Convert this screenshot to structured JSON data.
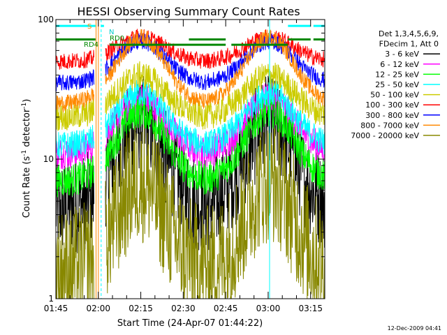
{
  "chart_data": {
    "type": "line",
    "title": "HESSI Observing Summary Count Rates",
    "xlabel": "Start Time (24-Apr-07 01:44:22)",
    "ylabel_main": "Count Rate (s",
    "ylabel_sup": "-1",
    "ylabel_end": " detector",
    "ylabel_sup2": "-1",
    "ylabel_close": ")",
    "ylim": [
      1,
      100
    ],
    "yscale": "log",
    "xlim_minutes": [
      105,
      200
    ],
    "x_ticks": [
      {
        "label": "01:45",
        "minute": 105
      },
      {
        "label": "02:00",
        "minute": 120
      },
      {
        "label": "02:15",
        "minute": 135
      },
      {
        "label": "02:30",
        "minute": 150
      },
      {
        "label": "02:45",
        "minute": 165
      },
      {
        "label": "03:00",
        "minute": 180
      },
      {
        "label": "03:15",
        "minute": 195
      }
    ],
    "y_ticks": [
      {
        "label": "1",
        "value": 1
      },
      {
        "label": "10",
        "value": 10
      },
      {
        "label": "100",
        "value": 100
      }
    ],
    "legend": {
      "header": [
        "Det 1,3,4,5,6,9,",
        "FDecim 1, Att 0"
      ],
      "placement": "right"
    },
    "series": [
      {
        "name": "3 - 6 keV",
        "color": "#000000",
        "base": 4.5,
        "peak": 18,
        "noise": 0.35
      },
      {
        "name": "6 - 12 keV",
        "color": "#ff00ff",
        "base": 11,
        "peak": 27,
        "noise": 0.12
      },
      {
        "name": "12 - 25 keV",
        "color": "#00ff00",
        "base": 7,
        "peak": 22,
        "noise": 0.12
      },
      {
        "name": "25 - 50 keV",
        "color": "#00ffff",
        "base": 12.5,
        "peak": 30,
        "noise": 0.1
      },
      {
        "name": "50 - 100 keV",
        "color": "#cccc00",
        "base": 20,
        "peak": 40,
        "noise": 0.1
      },
      {
        "name": "100 - 300 keV",
        "color": "#ff0000",
        "base": 50,
        "peak": 75,
        "noise": 0.06
      },
      {
        "name": "300 - 800 keV",
        "color": "#0000ff",
        "base": 35,
        "peak": 70,
        "noise": 0.06
      },
      {
        "name": "800 - 7000 keV",
        "color": "#ff8800",
        "base": 25,
        "peak": 75,
        "noise": 0.06
      },
      {
        "name": "7000 - 20000 keV",
        "color": "#888800",
        "base": 1.6,
        "peak": 7,
        "noise": 0.45
      }
    ],
    "flags": [
      {
        "label": "S",
        "color": "#ff8800",
        "value": 90
      },
      {
        "label": "N",
        "color": "#00cccc",
        "value": 82
      },
      {
        "label": "RD0",
        "color": "#008800",
        "value": 72
      },
      {
        "label": "RD4",
        "color": "#008800",
        "value": 66
      }
    ],
    "flag_bars": [
      {
        "color": "#00ffff",
        "value": 90,
        "ranges": [
          [
            105,
            119
          ],
          [
            121,
            122
          ],
          [
            187,
            195
          ],
          [
            196,
            200
          ]
        ]
      },
      {
        "color": "#008800",
        "value": 72,
        "ranges": [
          [
            105,
            119
          ],
          [
            152,
            165
          ],
          [
            187,
            195
          ],
          [
            196,
            200
          ]
        ]
      },
      {
        "color": "#008800",
        "value": 66,
        "ranges": [
          [
            124,
            165
          ],
          [
            167,
            187
          ]
        ]
      }
    ],
    "v_lines": [
      {
        "minute": 105,
        "color": "#00ffff",
        "style": "solid"
      },
      {
        "minute": 180.5,
        "color": "#00ffff",
        "style": "solid"
      },
      {
        "minute": 119.2,
        "color": "#ff8800",
        "style": "solid"
      },
      {
        "minute": 120.0,
        "color": "#ff8800",
        "style": "solid"
      },
      {
        "minute": 121.0,
        "color": "#00ffff",
        "style": "dash"
      },
      {
        "minute": 200,
        "color": "#00ffff",
        "style": "dash"
      }
    ],
    "orbit": {
      "gap_start": 118.5,
      "gap_end": 122.5,
      "peaks": [
        135,
        180.5
      ],
      "width": 12
    }
  },
  "footer": {
    "date": "12-Dec-2009 04:41"
  }
}
